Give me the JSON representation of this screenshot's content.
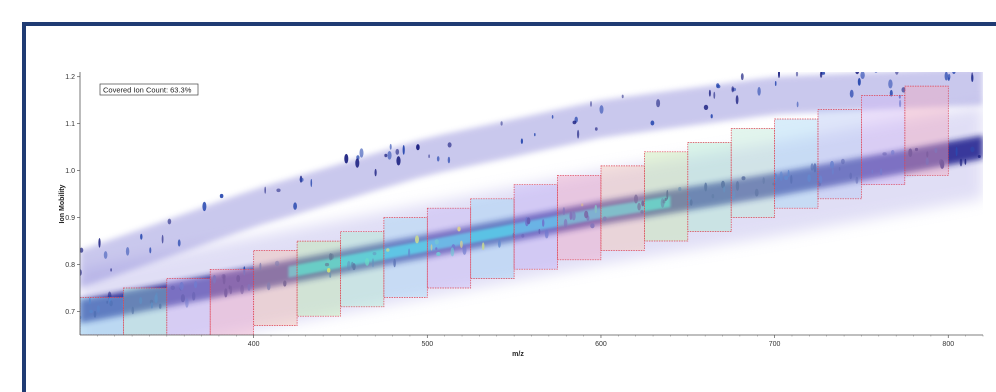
{
  "chart_data": {
    "type": "heatmap",
    "title": "",
    "xlabel": "m/z",
    "ylabel": "Ion Mobility",
    "xlim": [
      300,
      820
    ],
    "ylim": [
      0.65,
      1.21
    ],
    "x_ticks": [
      400,
      500,
      600,
      700,
      800
    ],
    "y_ticks": [
      0.7,
      0.8,
      0.9,
      1.0,
      1.1,
      1.2
    ],
    "grid": false,
    "annotation": "Covered Ion Count: 63.3%",
    "density_ridge": [
      {
        "mz": 300,
        "im": 0.7
      },
      {
        "mz": 400,
        "im": 0.77
      },
      {
        "mz": 500,
        "im": 0.84
      },
      {
        "mz": 600,
        "im": 0.91
      },
      {
        "mz": 700,
        "im": 0.97
      },
      {
        "mz": 820,
        "im": 1.05
      }
    ],
    "upper_band_ridge": [
      {
        "mz": 300,
        "im": 0.8
      },
      {
        "mz": 400,
        "im": 0.93
      },
      {
        "mz": 500,
        "im": 1.04
      },
      {
        "mz": 600,
        "im": 1.12
      },
      {
        "mz": 700,
        "im": 1.17
      },
      {
        "mz": 820,
        "im": 1.19
      }
    ],
    "windows": [
      {
        "mz_low": 300,
        "mz_high": 325,
        "im_low": 0.65,
        "im_high": 0.73,
        "color": "#8fd0f0"
      },
      {
        "mz_low": 325,
        "mz_high": 350,
        "im_low": 0.65,
        "im_high": 0.75,
        "color": "#9fe0d8"
      },
      {
        "mz_low": 350,
        "mz_high": 375,
        "im_low": 0.65,
        "im_high": 0.77,
        "color": "#c9b6f2"
      },
      {
        "mz_low": 375,
        "mz_high": 400,
        "im_low": 0.65,
        "im_high": 0.79,
        "color": "#f0a8c8"
      },
      {
        "mz_low": 400,
        "mz_high": 425,
        "im_low": 0.67,
        "im_high": 0.83,
        "color": "#f4c2b2"
      },
      {
        "mz_low": 425,
        "mz_high": 450,
        "im_low": 0.69,
        "im_high": 0.85,
        "color": "#bfe8b0"
      },
      {
        "mz_low": 450,
        "mz_high": 475,
        "im_low": 0.71,
        "im_high": 0.87,
        "color": "#b0e8d0"
      },
      {
        "mz_low": 475,
        "mz_high": 500,
        "im_low": 0.73,
        "im_high": 0.9,
        "color": "#a8d8f5"
      },
      {
        "mz_low": 500,
        "mz_high": 525,
        "im_low": 0.75,
        "im_high": 0.92,
        "color": "#c8b8f5"
      },
      {
        "mz_low": 525,
        "mz_high": 550,
        "im_low": 0.77,
        "im_high": 0.94,
        "color": "#9fd0f5"
      },
      {
        "mz_low": 550,
        "mz_high": 575,
        "im_low": 0.79,
        "im_high": 0.97,
        "color": "#c0b0f5"
      },
      {
        "mz_low": 575,
        "mz_high": 600,
        "im_low": 0.81,
        "im_high": 0.99,
        "color": "#f0a8c8"
      },
      {
        "mz_low": 600,
        "mz_high": 625,
        "im_low": 0.83,
        "im_high": 1.01,
        "color": "#f4c8b8"
      },
      {
        "mz_low": 625,
        "mz_high": 650,
        "im_low": 0.85,
        "im_high": 1.04,
        "color": "#c8e8b0"
      },
      {
        "mz_low": 650,
        "mz_high": 675,
        "im_low": 0.87,
        "im_high": 1.06,
        "color": "#b0e8d0"
      },
      {
        "mz_low": 675,
        "mz_high": 700,
        "im_low": 0.9,
        "im_high": 1.09,
        "color": "#bfe8d8"
      },
      {
        "mz_low": 700,
        "mz_high": 725,
        "im_low": 0.92,
        "im_high": 1.11,
        "color": "#a8d8f5"
      },
      {
        "mz_low": 725,
        "mz_high": 750,
        "im_low": 0.94,
        "im_high": 1.13,
        "color": "#b8c8f5"
      },
      {
        "mz_low": 750,
        "mz_high": 775,
        "im_low": 0.97,
        "im_high": 1.16,
        "color": "#d0b8f5"
      },
      {
        "mz_low": 775,
        "mz_high": 800,
        "im_low": 0.99,
        "im_high": 1.18,
        "color": "#f0a8c0"
      }
    ],
    "window_border_color": "#e04050"
  }
}
